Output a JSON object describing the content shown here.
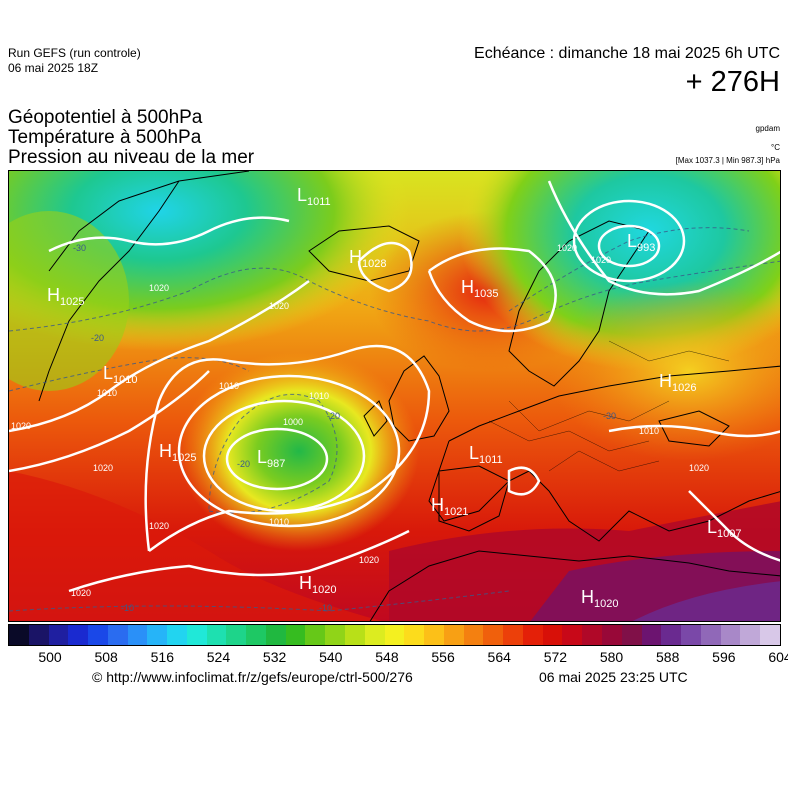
{
  "header": {
    "run_name": "Run GEFS (run controle)",
    "run_date": "06 mai 2025 18Z",
    "valid_time": "Echéance : dimanche 18 mai 2025 6h UTC",
    "lead_time": "+ 276H"
  },
  "titles": [
    "Géopotentiel à 500hPa",
    "Température à 500hPa",
    "Pression au niveau de la mer"
  ],
  "units": {
    "geopotential": "gpdam",
    "temperature": "°C",
    "minmax": "[Max 1037.3 | Min 987.3] hPa"
  },
  "pressure_systems": [
    {
      "type": "L",
      "value": "1011"
    },
    {
      "type": "H",
      "value": "1025"
    },
    {
      "type": "H",
      "value": "1028"
    },
    {
      "type": "H",
      "value": "1035"
    },
    {
      "type": "L",
      "value": "993"
    },
    {
      "type": "L",
      "value": "1010"
    },
    {
      "type": "H",
      "value": "1026"
    },
    {
      "type": "H",
      "value": "1025"
    },
    {
      "type": "L",
      "value": "987"
    },
    {
      "type": "L",
      "value": "1011"
    },
    {
      "type": "H",
      "value": "1021"
    },
    {
      "type": "L",
      "value": "1007"
    },
    {
      "type": "H",
      "value": "1020"
    },
    {
      "type": "H",
      "value": "1020"
    }
  ],
  "isobar_labels": [
    "1020",
    "1020",
    "1010",
    "1010",
    "1000",
    "1010",
    "1020",
    "1020",
    "1020",
    "1010",
    "1020",
    "1020",
    "1020",
    "1020",
    "1010",
    "1020"
  ],
  "isotherm_labels": [
    "-30",
    "-20",
    "-20",
    "-20",
    "-10",
    "-10",
    "-30"
  ],
  "colorbar": {
    "colors": [
      "#0a0a28",
      "#1a1466",
      "#1f1fa0",
      "#1a2ad0",
      "#1a48e8",
      "#2a6cf0",
      "#2a90f8",
      "#26b4f8",
      "#22d4f0",
      "#20e8d8",
      "#1ee0b0",
      "#1ed48a",
      "#1ec864",
      "#20b840",
      "#36bc20",
      "#66c818",
      "#90d418",
      "#b8e018",
      "#dcec20",
      "#f4f020",
      "#fcdc1c",
      "#fcc018",
      "#f8a014",
      "#f48010",
      "#f0600c",
      "#ec400a",
      "#e42008",
      "#d81008",
      "#c80818",
      "#b00828",
      "#980838",
      "#801048",
      "#6c1470",
      "#6a2a90",
      "#7a48a8",
      "#9068b8",
      "#a888c8",
      "#c0a8d8",
      "#d8c8e8"
    ],
    "tick_labels": [
      "500",
      "508",
      "516",
      "524",
      "532",
      "540",
      "548",
      "556",
      "564",
      "572",
      "580",
      "588",
      "596",
      "604"
    ]
  },
  "footer": {
    "credit_url": "© http://www.infoclimat.fr/z/gefs/europe/ctrl-500/276",
    "credit_time": "06 mai 2025 23:25 UTC"
  }
}
